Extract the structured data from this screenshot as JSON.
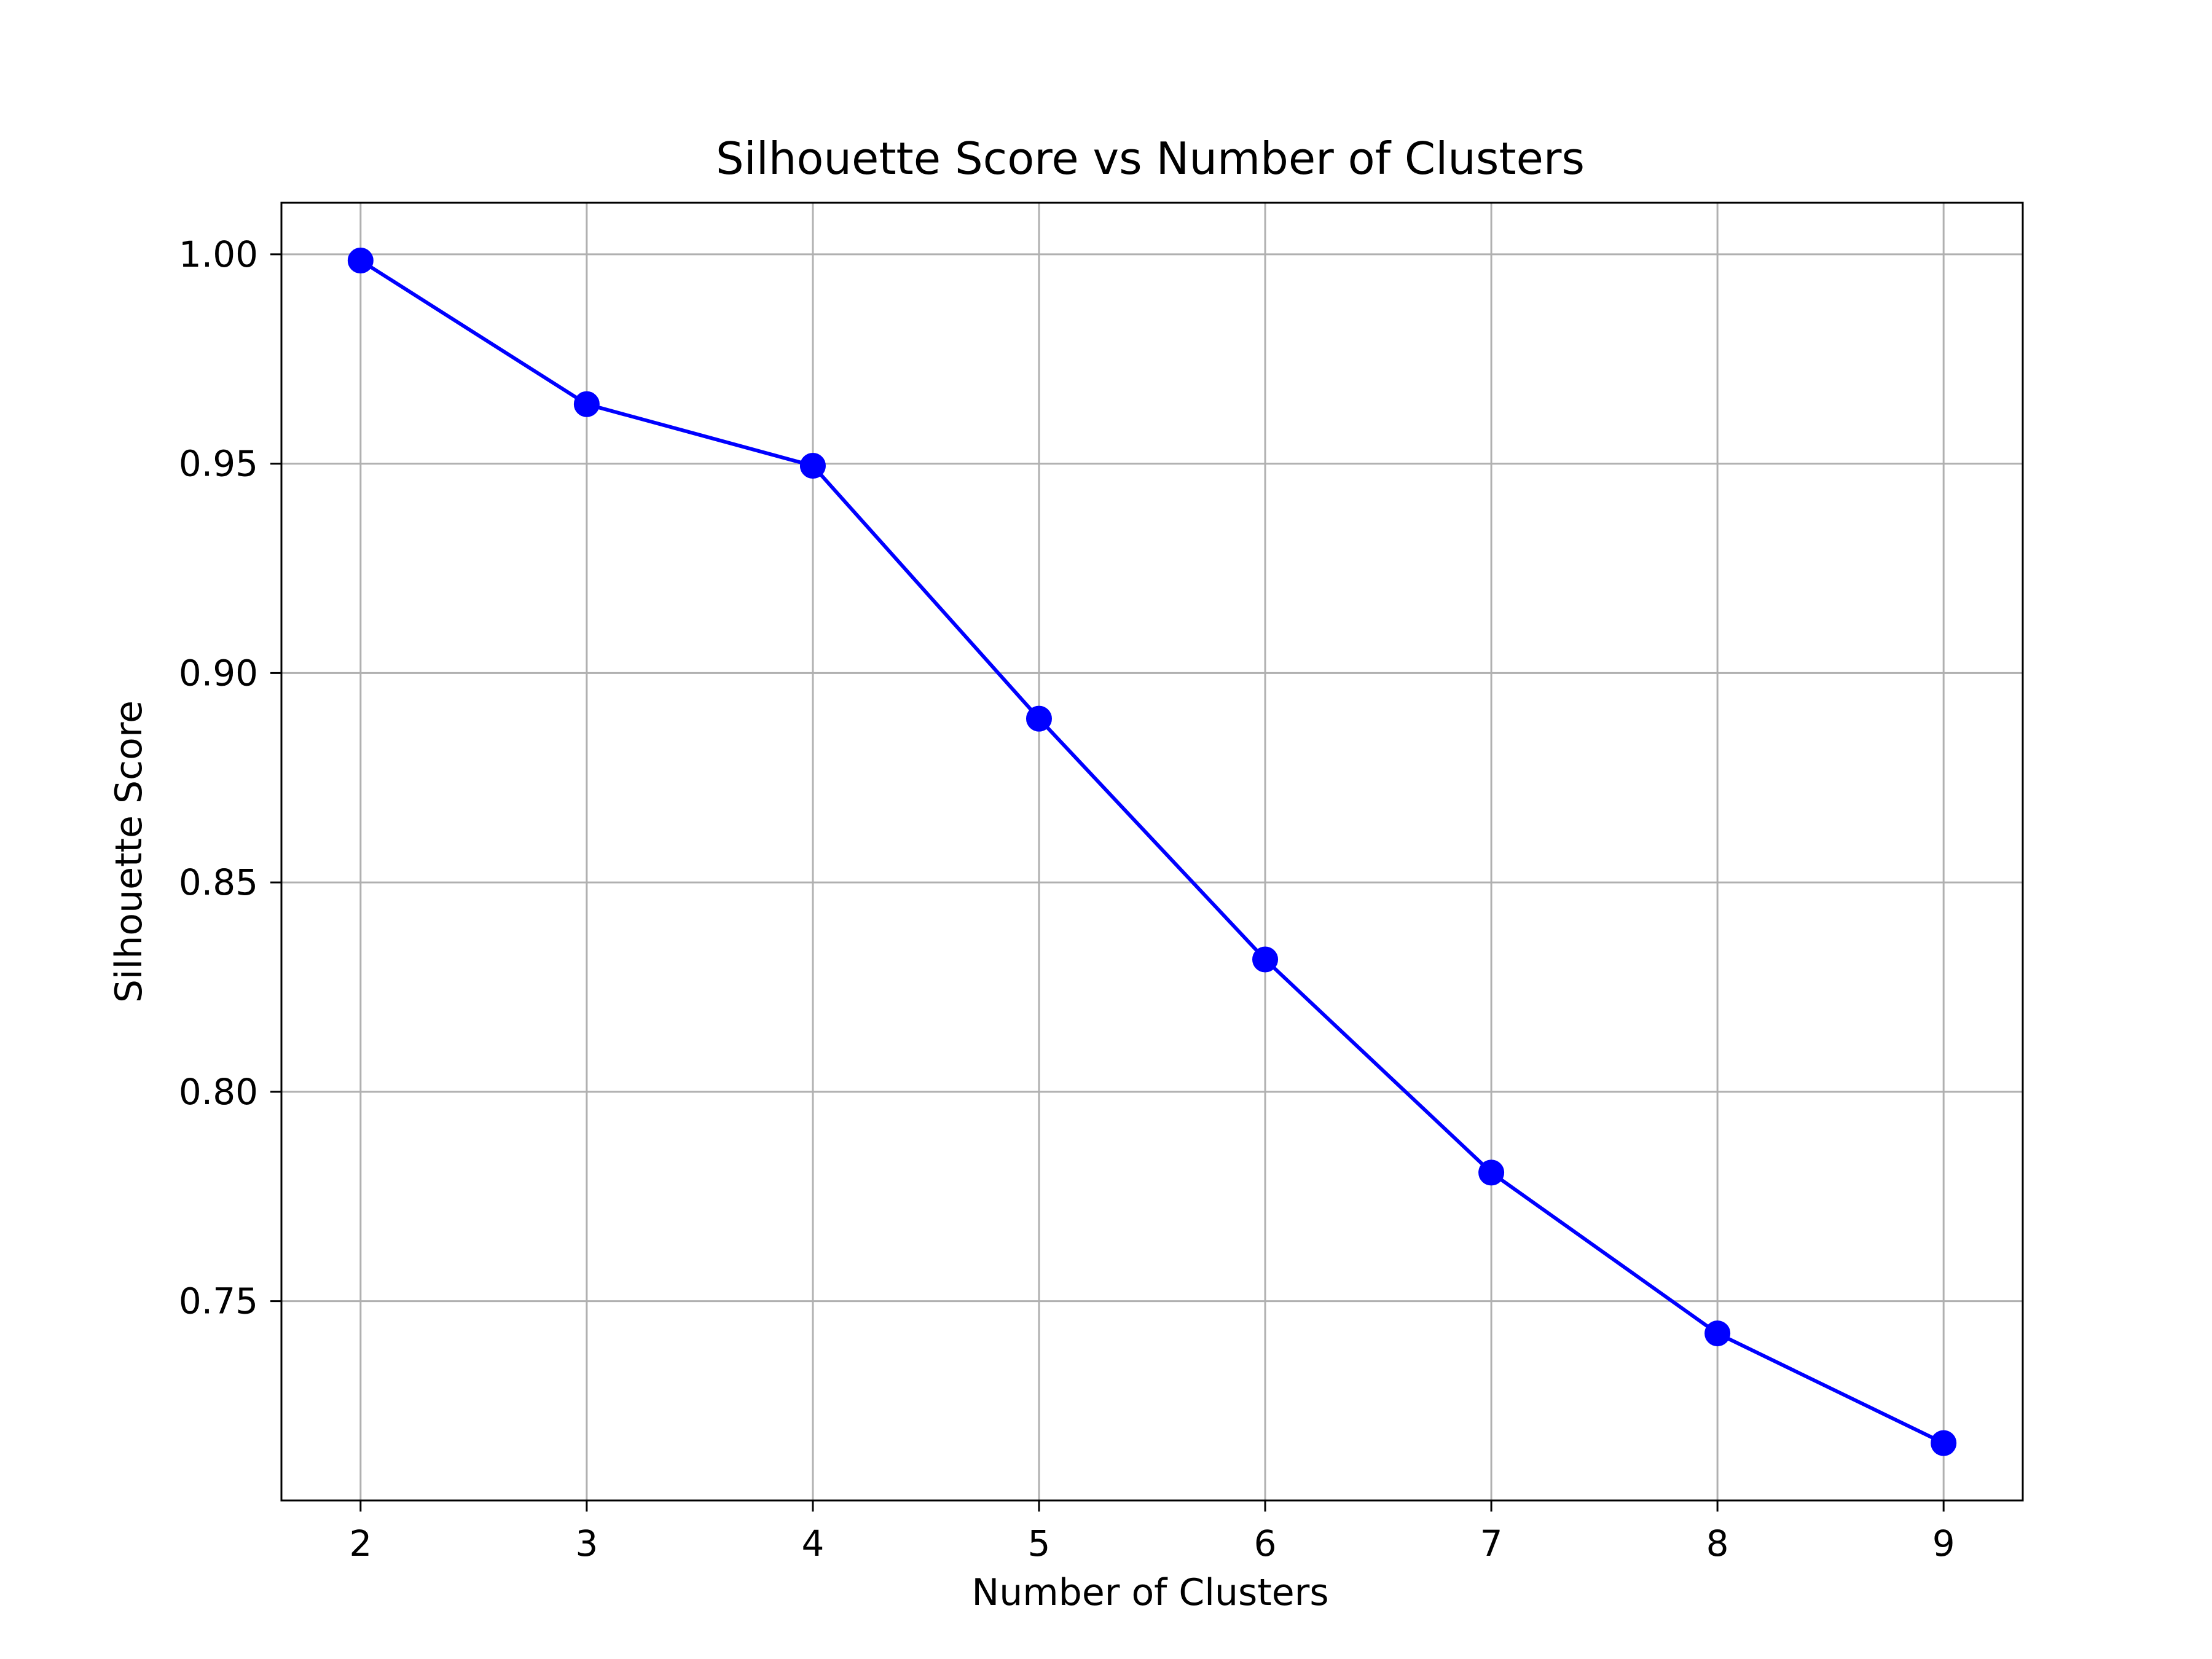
{
  "chart_data": {
    "type": "line",
    "title": "Silhouette Score vs Number of Clusters",
    "xlabel": "Number of Clusters",
    "ylabel": "Silhouette Score",
    "x": [
      2,
      3,
      4,
      5,
      6,
      7,
      8,
      9
    ],
    "series": [
      {
        "values": [
          0.9985,
          0.9642,
          0.9495,
          0.8891,
          0.8316,
          0.7807,
          0.7423,
          0.7161
        ],
        "color": "#0000ff",
        "marker": "circle"
      }
    ],
    "xlim": [
      1.65,
      9.35
    ],
    "ylim": [
      0.7024,
      1.0123
    ],
    "x_ticks": [
      2,
      3,
      4,
      5,
      6,
      7,
      8,
      9
    ],
    "x_tick_labels": [
      "2",
      "3",
      "4",
      "5",
      "6",
      "7",
      "8",
      "9"
    ],
    "y_ticks": [
      0.75,
      0.8,
      0.85,
      0.9,
      0.95,
      1.0
    ],
    "y_tick_labels": [
      "0.75",
      "0.80",
      "0.85",
      "0.90",
      "0.95",
      "1.00"
    ],
    "grid": true,
    "grid_color": "#b0b0b0",
    "axes_color": "#000000"
  }
}
